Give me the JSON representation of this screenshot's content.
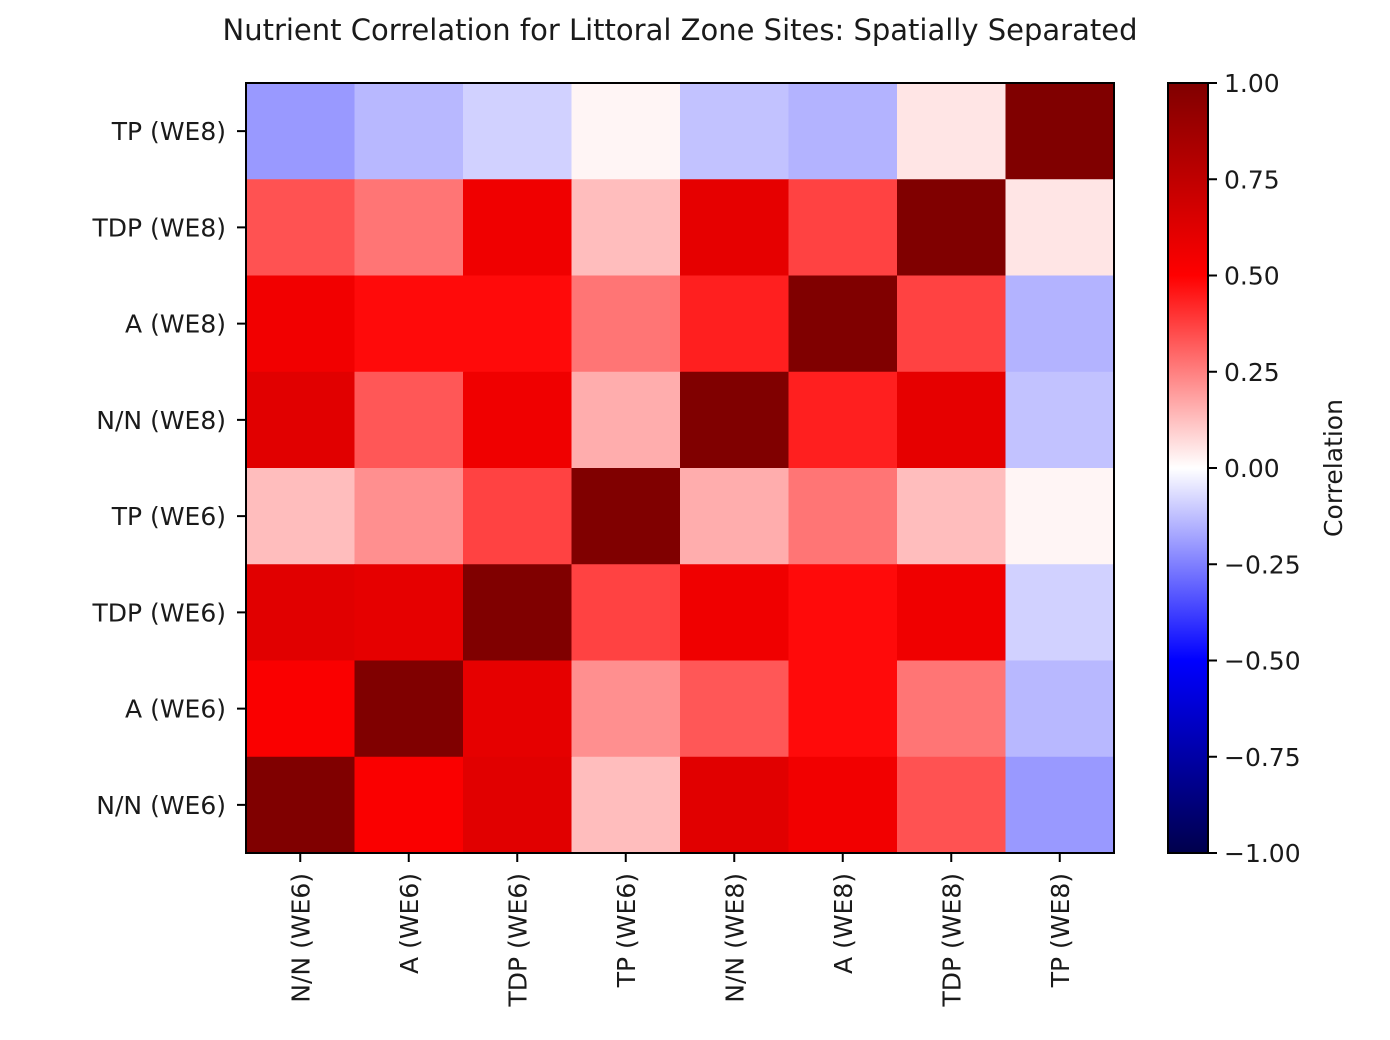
{
  "chart_data": {
    "type": "heatmap",
    "title": "Nutrient Correlation for Littoral Zone Sites: Spatially Separated",
    "x_labels": [
      "N/N (WE6)",
      "A (WE6)",
      "TDP (WE6)",
      "TP (WE6)",
      "N/N (WE8)",
      "A (WE8)",
      "TDP (WE8)",
      "TP (WE8)"
    ],
    "y_labels": [
      "TP (WE8)",
      "TDP (WE8)",
      "A (WE8)",
      "N/N (WE8)",
      "TP (WE6)",
      "TDP (WE6)",
      "A (WE6)",
      "N/N (WE6)"
    ],
    "matrix": [
      [
        -0.2,
        -0.14,
        -0.09,
        0.02,
        -0.12,
        -0.15,
        0.05,
        1.0
      ],
      [
        0.34,
        0.27,
        0.56,
        0.13,
        0.6,
        0.37,
        1.0,
        0.05
      ],
      [
        0.55,
        0.48,
        0.48,
        0.27,
        0.44,
        1.0,
        0.37,
        -0.15
      ],
      [
        0.62,
        0.33,
        0.56,
        0.16,
        1.0,
        0.44,
        0.6,
        -0.12
      ],
      [
        0.13,
        0.22,
        0.37,
        1.0,
        0.16,
        0.27,
        0.13,
        0.02
      ],
      [
        0.62,
        0.6,
        1.0,
        0.37,
        0.56,
        0.48,
        0.56,
        -0.09
      ],
      [
        0.52,
        1.0,
        0.6,
        0.22,
        0.33,
        0.48,
        0.27,
        -0.14
      ],
      [
        1.0,
        0.52,
        0.62,
        0.13,
        0.62,
        0.55,
        0.34,
        -0.2
      ]
    ],
    "colorbar": {
      "label": "Correlation",
      "vmin": -1.0,
      "vmax": 1.0,
      "ticks": [
        1.0,
        0.75,
        0.5,
        0.25,
        0.0,
        -0.25,
        -0.5,
        -0.75,
        -1.0
      ],
      "tick_labels": [
        "1.00",
        "0.75",
        "0.50",
        "0.25",
        "0.00",
        "−0.25",
        "−0.50",
        "−0.75",
        "−1.00"
      ],
      "colormap": "seismic",
      "colors": [
        "#00004c",
        "#0000ff",
        "#ffffff",
        "#ff0000",
        "#800000"
      ]
    }
  }
}
